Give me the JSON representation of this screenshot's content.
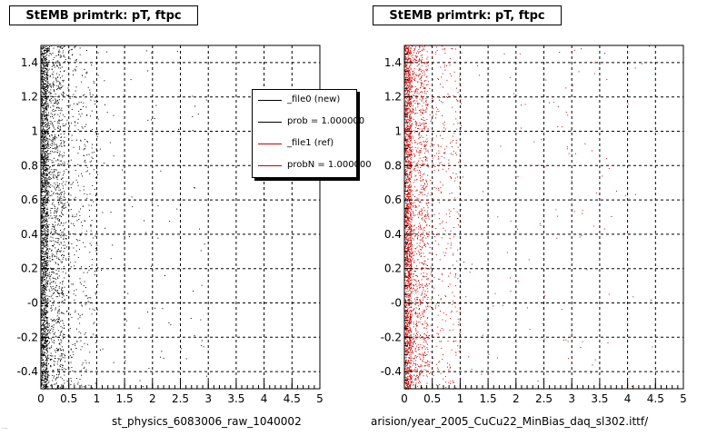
{
  "colors": {
    "new": "#000000",
    "ref": "#cc0000",
    "grid": "#000000"
  },
  "chart_data": [
    {
      "type": "scatter",
      "title": "StEMB primtrk: pT, ftpc",
      "xlabel": "st_physics_6083006_raw_1040002",
      "xlim": [
        0,
        5
      ],
      "ylim": [
        -0.5,
        1.5
      ],
      "x_ticks": [
        "0",
        "0.5",
        "1",
        "1.5",
        "2",
        "2.5",
        "3",
        "3.5",
        "4",
        "4.5",
        "5"
      ],
      "y_ticks": [
        "-0.4",
        "-0.2",
        "-0",
        "0.2",
        "0.4",
        "0.6",
        "0.8",
        "1",
        "1.2",
        "1.4"
      ],
      "grid": true,
      "marker_color": "#000000",
      "density": "points concentrated at x < 0.5, sparse tail to x ≈ 3"
    },
    {
      "type": "scatter",
      "title": "StEMB primtrk: pT, ftpc",
      "xlabel": "arision/year_2005_CuCu22_MinBias_daq_sl302.ittf/",
      "xlim": [
        0,
        5
      ],
      "ylim": [
        -0.5,
        1.5
      ],
      "x_ticks": [
        "0",
        "0.5",
        "1",
        "1.5",
        "2",
        "2.5",
        "3",
        "3.5",
        "4",
        "4.5",
        "5"
      ],
      "y_ticks": [
        "-0.4",
        "-0.2",
        "-0",
        "0.2",
        "0.4",
        "0.6",
        "0.8",
        "1",
        "1.2",
        "1.4"
      ],
      "grid": true,
      "marker_color": "#cc0000",
      "density": "points concentrated at x < 0.5, sparse tail to x ≈ 4.5"
    }
  ],
  "legend": {
    "entries": [
      {
        "label": "_file0 (new)",
        "color": "#000000"
      },
      {
        "label": "prob = 1.000000",
        "color": "#000000"
      },
      {
        "label": "_file1 (ref)",
        "color": "#cc0000"
      },
      {
        "label": "probN = 1.000000",
        "color": "#cc0000"
      }
    ]
  },
  "footer_text": "..."
}
